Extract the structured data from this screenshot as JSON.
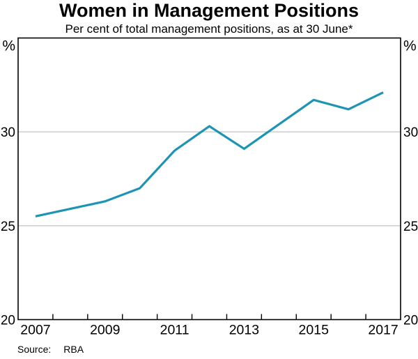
{
  "chart_data": {
    "type": "line",
    "title": "Women in Management Positions",
    "subtitle": "Per cent of total management positions, as at 30 June*",
    "x": [
      2007,
      2008,
      2009,
      2010,
      2011,
      2012,
      2013,
      2014,
      2015,
      2016,
      2017
    ],
    "values": [
      25.5,
      25.9,
      26.3,
      27.0,
      29.0,
      30.3,
      29.1,
      30.4,
      31.7,
      31.2,
      32.1
    ],
    "series_name": "Women in management positions",
    "unit_label": "%",
    "xlim": [
      2006.5,
      2017.5
    ],
    "ylim": [
      20,
      35
    ],
    "y_tick_labels": [
      20,
      25,
      30
    ],
    "y_gridlines": [
      25,
      30
    ],
    "x_tick_labels": [
      2007,
      2009,
      2011,
      2013,
      2015,
      2017
    ],
    "x_minor_ticks": [
      2007.5,
      2008.5,
      2009.5,
      2010.5,
      2011.5,
      2012.5,
      2013.5,
      2014.5,
      2015.5,
      2016.5
    ],
    "grid": "horizontal-only",
    "legend_position": "none",
    "line_color": "#1E94B4",
    "grid_color": "#b5b5b5",
    "axis_color": "#000000",
    "text_color": "#000000"
  },
  "source": {
    "label": "Source:",
    "value": "RBA"
  }
}
